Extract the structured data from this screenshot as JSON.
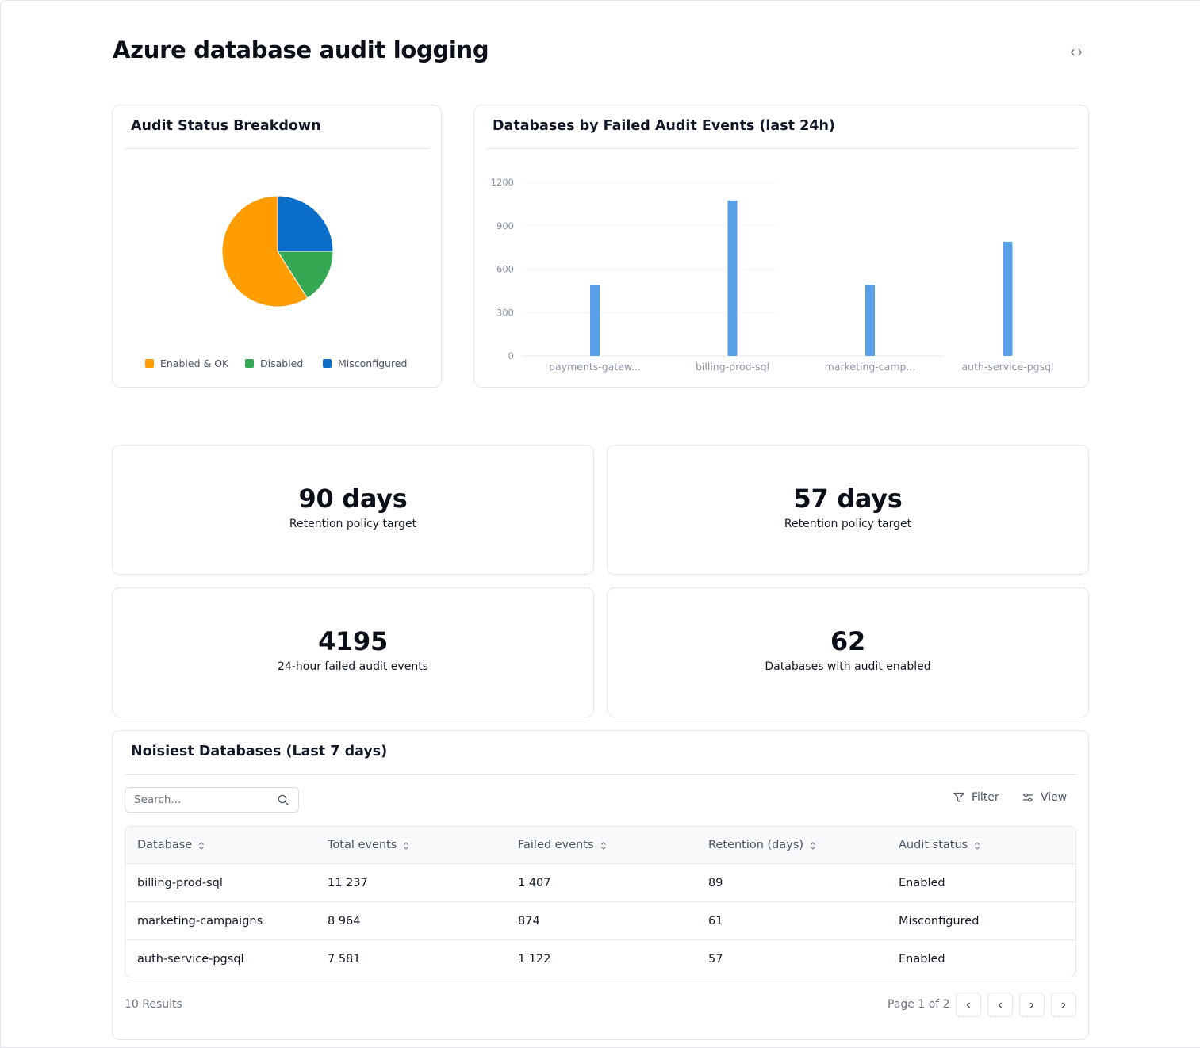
{
  "page": {
    "title": "Azure database audit logging"
  },
  "pie_card": {
    "title": "Audit Status Breakdown",
    "legend": [
      {
        "label": "Enabled & OK",
        "color": "#ff9c00"
      },
      {
        "label": "Disabled",
        "color": "#34a853"
      },
      {
        "label": "Misconfigured",
        "color": "#0a6ec8"
      }
    ]
  },
  "bar_card": {
    "title": "Databases by Failed Audit Events (last 24h)"
  },
  "stats": [
    {
      "value": "90 days",
      "label": "Retention policy target"
    },
    {
      "value": "57 days",
      "label": "Retention policy target"
    },
    {
      "value": "4195",
      "label": "24-hour failed audit events"
    },
    {
      "value": "62",
      "label": "Databases with audit enabled"
    }
  ],
  "table_card": {
    "title": "Noisiest Databases (Last 7 days)",
    "search_placeholder": "Search...",
    "filter_label": "Filter",
    "view_label": "View",
    "columns": [
      "Database",
      "Total events",
      "Failed events",
      "Retention (days)",
      "Audit status"
    ],
    "rows": [
      [
        "billing-prod-sql",
        "11 237",
        "1 407",
        "89",
        "Enabled"
      ],
      [
        "marketing-campaigns",
        "8 964",
        "874",
        "61",
        "Misconfigured"
      ],
      [
        "auth-service-pgsql",
        "7 581",
        "1 122",
        "57",
        "Enabled"
      ]
    ],
    "results_text": "10 Results",
    "page_text": "Page 1 of 2"
  },
  "chart_data": [
    {
      "type": "pie",
      "title": "Audit Status Breakdown",
      "labels": [
        "Enabled & OK",
        "Disabled",
        "Misconfigured"
      ],
      "values": [
        59,
        16,
        25
      ],
      "colors": [
        "#ff9c00",
        "#34a853",
        "#0a6ec8"
      ]
    },
    {
      "type": "bar",
      "title": "Databases by Failed Audit Events (last 24h)",
      "categories": [
        "payments-gatew...",
        "billing-prod-sql",
        "marketing-camp...",
        "auth-service-pgsql"
      ],
      "values": [
        490,
        1075,
        490,
        790
      ],
      "yticks": [
        0,
        300,
        600,
        900,
        1200
      ],
      "ylim": [
        0,
        1200
      ],
      "color": "#58a0e8"
    }
  ]
}
